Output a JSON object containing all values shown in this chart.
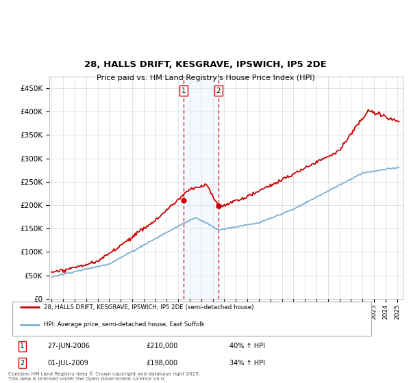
{
  "title": "28, HALLS DRIFT, KESGRAVE, IPSWICH, IP5 2DE",
  "subtitle": "Price paid vs. HM Land Registry's House Price Index (HPI)",
  "sale1_date": "27-JUN-2006",
  "sale1_price": 210000,
  "sale1_label": "1",
  "sale1_pct": "40% ↑ HPI",
  "sale2_date": "01-JUL-2009",
  "sale2_price": 198000,
  "sale2_label": "2",
  "sale2_pct": "34% ↑ HPI",
  "legend_property": "28, HALLS DRIFT, KESGRAVE, IPSWICH, IP5 2DE (semi-detached house)",
  "legend_hpi": "HPI: Average price, semi-detached house, East Suffolk",
  "footer": "Contains HM Land Registry data © Crown copyright and database right 2025.\nThis data is licensed under the Open Government Licence v3.0.",
  "property_color": "#cc0000",
  "hpi_color": "#7bafd4",
  "shading_color": "#ddeeff",
  "vline_color": "#cc0000",
  "background_color": "#ffffff",
  "grid_color": "#cccccc",
  "ylim": [
    0,
    475000
  ],
  "yticks": [
    0,
    50000,
    100000,
    150000,
    200000,
    250000,
    300000,
    350000,
    400000,
    450000
  ],
  "ytick_labels": [
    "£0",
    "£50K",
    "£100K",
    "£150K",
    "£200K",
    "£250K",
    "£300K",
    "£350K",
    "£400K",
    "£450K"
  ]
}
